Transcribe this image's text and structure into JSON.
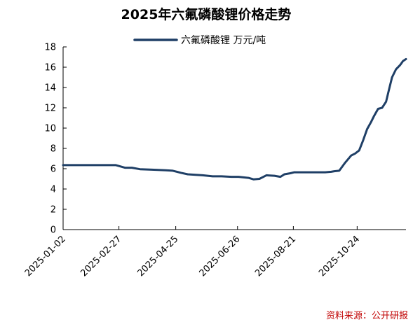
{
  "chart_data": {
    "type": "line",
    "title": "2025年六氟磷酸锂价格走势",
    "xlabel": "",
    "ylabel": "",
    "x_tick_labels": [
      "2025-01-02",
      "2025-02-27",
      "2025-04-25",
      "2025-06-26",
      "2025-08-21",
      "2025-10-24"
    ],
    "y_tick_labels": [
      "0",
      "2",
      "4",
      "6",
      "8",
      "10",
      "12",
      "14",
      "16",
      "18"
    ],
    "ylim": [
      0,
      18
    ],
    "xlim": [
      "2025-01-02",
      "2025-12-12"
    ],
    "legend_position": "top-center",
    "grid": false,
    "line_color": "#1f3f66",
    "source_color": "#c00000",
    "series": [
      {
        "name": "六氟磷酸锂 万元/吨",
        "x": [
          "2025-01-02",
          "2025-02-24",
          "2025-03-05",
          "2025-03-12",
          "2025-03-20",
          "2025-04-01",
          "2025-04-15",
          "2025-04-22",
          "2025-04-30",
          "2025-05-07",
          "2025-05-15",
          "2025-05-22",
          "2025-06-01",
          "2025-06-10",
          "2025-06-20",
          "2025-06-27",
          "2025-07-07",
          "2025-07-12",
          "2025-07-18",
          "2025-07-25",
          "2025-08-02",
          "2025-08-08",
          "2025-08-12",
          "2025-08-18",
          "2025-08-22",
          "2025-08-28",
          "2025-09-05",
          "2025-09-15",
          "2025-09-22",
          "2025-09-28",
          "2025-10-01",
          "2025-10-06",
          "2025-10-12",
          "2025-10-18",
          "2025-10-22",
          "2025-10-26",
          "2025-10-30",
          "2025-11-03",
          "2025-11-07",
          "2025-11-10",
          "2025-11-14",
          "2025-11-18",
          "2025-11-22",
          "2025-11-25",
          "2025-11-28",
          "2025-12-02",
          "2025-12-06",
          "2025-12-09",
          "2025-12-12"
        ],
        "values": [
          6.35,
          6.35,
          6.1,
          6.1,
          5.95,
          5.9,
          5.85,
          5.8,
          5.6,
          5.45,
          5.4,
          5.35,
          5.25,
          5.25,
          5.2,
          5.2,
          5.1,
          4.95,
          5.0,
          5.35,
          5.3,
          5.2,
          5.45,
          5.55,
          5.65,
          5.65,
          5.65,
          5.65,
          5.65,
          5.7,
          5.75,
          5.8,
          6.6,
          7.3,
          7.5,
          7.8,
          8.8,
          9.9,
          10.6,
          11.2,
          11.9,
          12.0,
          12.6,
          13.8,
          15.0,
          15.8,
          16.2,
          16.6,
          16.8
        ]
      }
    ]
  },
  "source_note": "资料来源：公开研报"
}
